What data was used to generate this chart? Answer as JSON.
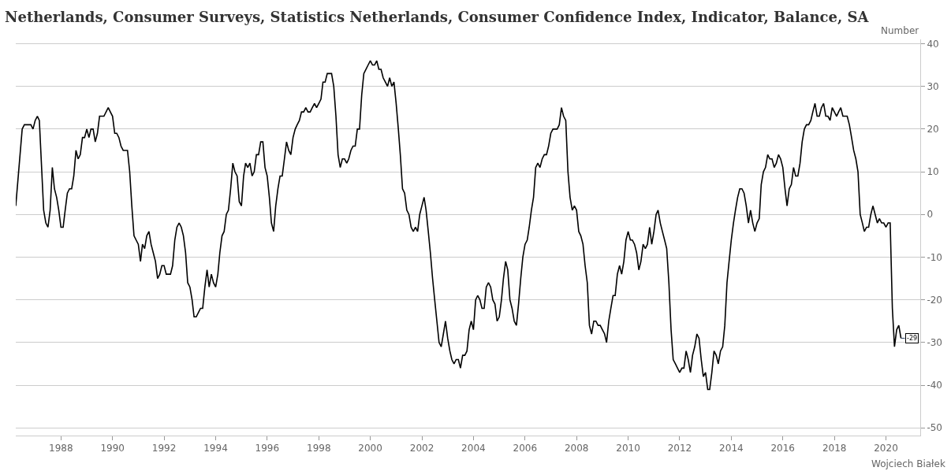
{
  "chart_data": {
    "type": "line",
    "title": "Netherlands, Consumer Surveys, Statistics Netherlands, Consumer Confidence Index, Indicator, Balance, SA",
    "ylabel": "Number",
    "annotations": [
      {
        "text": "-29",
        "x": "2020-08",
        "y": -29
      },
      "Wojciech Białek"
    ],
    "x": [
      "1986-04",
      "1986-07",
      "1986-08",
      "1986-11",
      "1986-12",
      "1987-01",
      "1987-02",
      "1987-03",
      "1987-05",
      "1987-06",
      "1987-07",
      "1987-08",
      "1987-09",
      "1987-10",
      "1987-11",
      "1987-12",
      "1988-01",
      "1988-02",
      "1988-03",
      "1988-04",
      "1988-05",
      "1988-06",
      "1988-07",
      "1988-08",
      "1988-09",
      "1988-10",
      "1988-11",
      "1988-12",
      "1989-01",
      "1989-02",
      "1989-03",
      "1989-04",
      "1989-05",
      "1989-06",
      "1989-07",
      "1989-09",
      "1989-11",
      "1989-12",
      "1990-01",
      "1990-02",
      "1990-03",
      "1990-04",
      "1990-05",
      "1990-06",
      "1990-08",
      "1990-09",
      "1990-10",
      "1990-11",
      "1990-12",
      "1991-01",
      "1991-02",
      "1991-03",
      "1991-04",
      "1991-05",
      "1991-06",
      "1991-07",
      "1991-08",
      "1991-09",
      "1991-10",
      "1991-11",
      "1991-12",
      "1992-01",
      "1992-02",
      "1992-04",
      "1992-05",
      "1992-06",
      "1992-07",
      "1992-08",
      "1992-09",
      "1992-10",
      "1992-11",
      "1992-12",
      "1993-01",
      "1993-02",
      "1993-03",
      "1993-04",
      "1993-05",
      "1993-06",
      "1993-07",
      "1993-08",
      "1993-09",
      "1993-10",
      "1993-11",
      "1993-12",
      "1994-01",
      "1994-02",
      "1994-03",
      "1994-04",
      "1994-05",
      "1994-06",
      "1994-07",
      "1994-08",
      "1994-09",
      "1994-10",
      "1994-11",
      "1994-12",
      "1995-01",
      "1995-02",
      "1995-03",
      "1995-04",
      "1995-05",
      "1995-06",
      "1995-07",
      "1995-08",
      "1995-09",
      "1995-10",
      "1995-11",
      "1995-12",
      "1996-01",
      "1996-02",
      "1996-03",
      "1996-04",
      "1996-05",
      "1996-06",
      "1996-07",
      "1996-08",
      "1996-09",
      "1996-10",
      "1996-11",
      "1996-12",
      "1997-01",
      "1997-02",
      "1997-03",
      "1997-04",
      "1997-05",
      "1997-06",
      "1997-07",
      "1997-08",
      "1997-09",
      "1997-10",
      "1997-11",
      "1997-12",
      "1998-01",
      "1998-02",
      "1998-03",
      "1998-04",
      "1998-05",
      "1998-06",
      "1998-07",
      "1998-08",
      "1998-09",
      "1998-10",
      "1998-11",
      "1998-12",
      "1999-01",
      "1999-02",
      "1999-03",
      "1999-04",
      "1999-05",
      "1999-06",
      "1999-07",
      "1999-08",
      "1999-09",
      "1999-10",
      "1999-11",
      "1999-12",
      "2000-01",
      "2000-02",
      "2000-03",
      "2000-04",
      "2000-05",
      "2000-06",
      "2000-07",
      "2000-08",
      "2000-09",
      "2000-10",
      "2000-11",
      "2000-12",
      "2001-01",
      "2001-02",
      "2001-03",
      "2001-04",
      "2001-05",
      "2001-06",
      "2001-07",
      "2001-08",
      "2001-09",
      "2001-10",
      "2001-11",
      "2001-12",
      "2002-01",
      "2002-02",
      "2002-03",
      "2002-04",
      "2002-05",
      "2002-06",
      "2002-07",
      "2002-08",
      "2002-09",
      "2002-10",
      "2002-11",
      "2002-12",
      "2003-01",
      "2003-02",
      "2003-03",
      "2003-04",
      "2003-05",
      "2003-06",
      "2003-07",
      "2003-08",
      "2003-09",
      "2003-10",
      "2003-11",
      "2003-12",
      "2004-01",
      "2004-02",
      "2004-03",
      "2004-04",
      "2004-05",
      "2004-06",
      "2004-07",
      "2004-08",
      "2004-09",
      "2004-10",
      "2004-11",
      "2004-12",
      "2005-01",
      "2005-02",
      "2005-03",
      "2005-04",
      "2005-05",
      "2005-06",
      "2005-07",
      "2005-08",
      "2005-09",
      "2005-10",
      "2005-11",
      "2005-12",
      "2006-01",
      "2006-02",
      "2006-03",
      "2006-04",
      "2006-05",
      "2006-06",
      "2006-07",
      "2006-08",
      "2006-09",
      "2006-10",
      "2006-11",
      "2006-12",
      "2007-01",
      "2007-02",
      "2007-03",
      "2007-04",
      "2007-05",
      "2007-06",
      "2007-07",
      "2007-08",
      "2007-09",
      "2007-10",
      "2007-11",
      "2007-12",
      "2008-01",
      "2008-02",
      "2008-03",
      "2008-04",
      "2008-05",
      "2008-06",
      "2008-07",
      "2008-08",
      "2008-09",
      "2008-10",
      "2008-11",
      "2008-12",
      "2009-01",
      "2009-02",
      "2009-03",
      "2009-04",
      "2009-05",
      "2009-06",
      "2009-07",
      "2009-08",
      "2009-09",
      "2009-10",
      "2009-11",
      "2009-12",
      "2010-01",
      "2010-02",
      "2010-03",
      "2010-04",
      "2010-05",
      "2010-06",
      "2010-07",
      "2010-08",
      "2010-09",
      "2010-10",
      "2010-11",
      "2010-12",
      "2011-01",
      "2011-02",
      "2011-03",
      "2011-04",
      "2011-05",
      "2011-06",
      "2011-07",
      "2011-08",
      "2011-09",
      "2011-10",
      "2011-11",
      "2011-12",
      "2012-01",
      "2012-02",
      "2012-03",
      "2012-04",
      "2012-05",
      "2012-06",
      "2012-07",
      "2012-08",
      "2012-09",
      "2012-10",
      "2012-11",
      "2012-12",
      "2013-01",
      "2013-02",
      "2013-03",
      "2013-04",
      "2013-05",
      "2013-06",
      "2013-07",
      "2013-08",
      "2013-09",
      "2013-10",
      "2013-11",
      "2013-12",
      "2014-01",
      "2014-02",
      "2014-03",
      "2014-04",
      "2014-05",
      "2014-06",
      "2014-07",
      "2014-08",
      "2014-09",
      "2014-10",
      "2014-11",
      "2014-12",
      "2015-01",
      "2015-02",
      "2015-03",
      "2015-04",
      "2015-05",
      "2015-06",
      "2015-07",
      "2015-08",
      "2015-09",
      "2015-10",
      "2015-11",
      "2015-12",
      "2016-01",
      "2016-02",
      "2016-03",
      "2016-04",
      "2016-05",
      "2016-06",
      "2016-07",
      "2016-08",
      "2016-09",
      "2016-10",
      "2016-11",
      "2016-12",
      "2017-01",
      "2017-02",
      "2017-03",
      "2017-04",
      "2017-05",
      "2017-06",
      "2017-07",
      "2017-08",
      "2017-09",
      "2017-10",
      "2017-11",
      "2017-12",
      "2018-01",
      "2018-02",
      "2018-03",
      "2018-04",
      "2018-05",
      "2018-06",
      "2018-07",
      "2018-08",
      "2018-09",
      "2018-10",
      "2018-11",
      "2018-12",
      "2019-01",
      "2019-02",
      "2019-03",
      "2019-04",
      "2019-05",
      "2019-06",
      "2019-07",
      "2019-08",
      "2019-09",
      "2019-10",
      "2019-11",
      "2019-12",
      "2020-01",
      "2020-02",
      "2020-03",
      "2020-04",
      "2020-05",
      "2020-06",
      "2020-07",
      "2020-08"
    ],
    "series": [
      {
        "color": "#000000",
        "values": [
          2,
          20,
          21,
          21,
          20,
          22,
          23,
          22,
          1,
          -2,
          -3,
          1,
          11,
          6,
          4,
          1,
          -3,
          -3,
          1,
          5,
          6,
          6,
          9,
          15,
          13,
          14,
          18,
          18,
          20,
          18,
          20,
          20,
          17,
          19,
          23,
          23,
          25,
          24,
          23,
          19,
          19,
          18,
          16,
          15,
          15,
          10,
          2,
          -5,
          -6,
          -7,
          -11,
          -7,
          -8,
          -5,
          -4,
          -7,
          -9,
          -11,
          -15,
          -14,
          -12,
          -12,
          -14,
          -14,
          -12,
          -6,
          -3,
          -2,
          -3,
          -5,
          -9,
          -16,
          -17,
          -20,
          -24,
          -24,
          -23,
          -22,
          -22,
          -17,
          -13,
          -17,
          -14,
          -16,
          -17,
          -14,
          -9,
          -5,
          -4,
          0,
          1,
          6,
          12,
          10,
          9,
          3,
          2,
          9,
          12,
          11,
          12,
          9,
          10,
          14,
          14,
          17,
          17,
          11,
          9,
          4,
          -2,
          -4,
          2,
          6,
          9,
          9,
          13,
          17,
          15,
          14,
          18,
          20,
          21,
          22,
          24,
          24,
          25,
          24,
          24,
          25,
          26,
          25,
          26,
          27,
          31,
          31,
          33,
          33,
          33,
          30,
          23,
          14,
          11,
          13,
          13,
          12,
          13,
          15,
          16,
          16,
          20,
          20,
          28,
          33,
          34,
          35,
          36,
          35,
          35,
          36,
          34,
          34,
          32,
          31,
          30,
          32,
          30,
          31,
          26,
          20,
          14,
          6,
          5,
          1,
          0,
          -3,
          -4,
          -3,
          -4,
          0,
          2,
          4,
          1,
          -4,
          -9,
          -15,
          -20,
          -25,
          -30,
          -31,
          -28,
          -25,
          -29,
          -32,
          -34,
          -35,
          -34,
          -34,
          -36,
          -33,
          -33,
          -32,
          -27,
          -25,
          -27,
          -20,
          -19,
          -20,
          -22,
          -22,
          -17,
          -16,
          -17,
          -20,
          -21,
          -25,
          -24,
          -20,
          -15,
          -11,
          -13,
          -20,
          -22,
          -25,
          -26,
          -21,
          -15,
          -10,
          -7,
          -6,
          -3,
          1,
          4,
          11,
          12,
          11,
          13,
          14,
          14,
          16,
          19,
          20,
          20,
          20,
          21,
          25,
          23,
          22,
          10,
          4,
          1,
          2,
          1,
          -4,
          -5,
          -7,
          -12,
          -16,
          -26,
          -28,
          -25,
          -25,
          -26,
          -26,
          -27,
          -28,
          -30,
          -25,
          -22,
          -19,
          -19,
          -14,
          -12,
          -14,
          -11,
          -6,
          -4,
          -6,
          -6,
          -7,
          -9,
          -13,
          -11,
          -7,
          -8,
          -7,
          -3,
          -7,
          -4,
          0,
          1,
          -2,
          -4,
          -6,
          -8,
          -16,
          -27,
          -34,
          -35,
          -36,
          -37,
          -36,
          -36,
          -32,
          -34,
          -37,
          -33,
          -31,
          -28,
          -29,
          -34,
          -38,
          -37,
          -41,
          -41,
          -37,
          -32,
          -33,
          -35,
          -32,
          -31,
          -26,
          -16,
          -11,
          -6,
          -2,
          1,
          4,
          6,
          6,
          5,
          2,
          -2,
          1,
          -2,
          -4,
          -2,
          -1,
          7,
          10,
          11,
          14,
          13,
          13,
          11,
          12,
          14,
          13,
          11,
          6,
          2,
          6,
          7,
          11,
          9,
          9,
          12,
          17,
          20,
          21,
          21,
          22,
          24,
          26,
          23,
          23,
          25,
          26,
          23,
          23,
          22,
          25,
          24,
          23,
          24,
          25,
          23,
          23,
          23,
          21,
          18,
          15,
          13,
          10,
          0,
          -2,
          -4,
          -3,
          -3,
          0,
          2,
          0,
          -2,
          -1,
          -2,
          -2,
          -3,
          -2,
          -2,
          -22,
          -31,
          -27,
          -26,
          -29
        ]
      }
    ],
    "xlim": [
      "1986-04",
      "2021-05"
    ],
    "ylim": [
      -51.8,
      41
    ],
    "xticks": [
      "1988",
      "1990",
      "1992",
      "1994",
      "1996",
      "1998",
      "2000",
      "2002",
      "2004",
      "2006",
      "2008",
      "2010",
      "2012",
      "2014",
      "2016",
      "2018",
      "2020"
    ],
    "yticks": [
      -50,
      -40,
      -30,
      -20,
      -10,
      0,
      10,
      20,
      30,
      40
    ],
    "grid": "y",
    "marker": "none",
    "line_style": "solid"
  }
}
